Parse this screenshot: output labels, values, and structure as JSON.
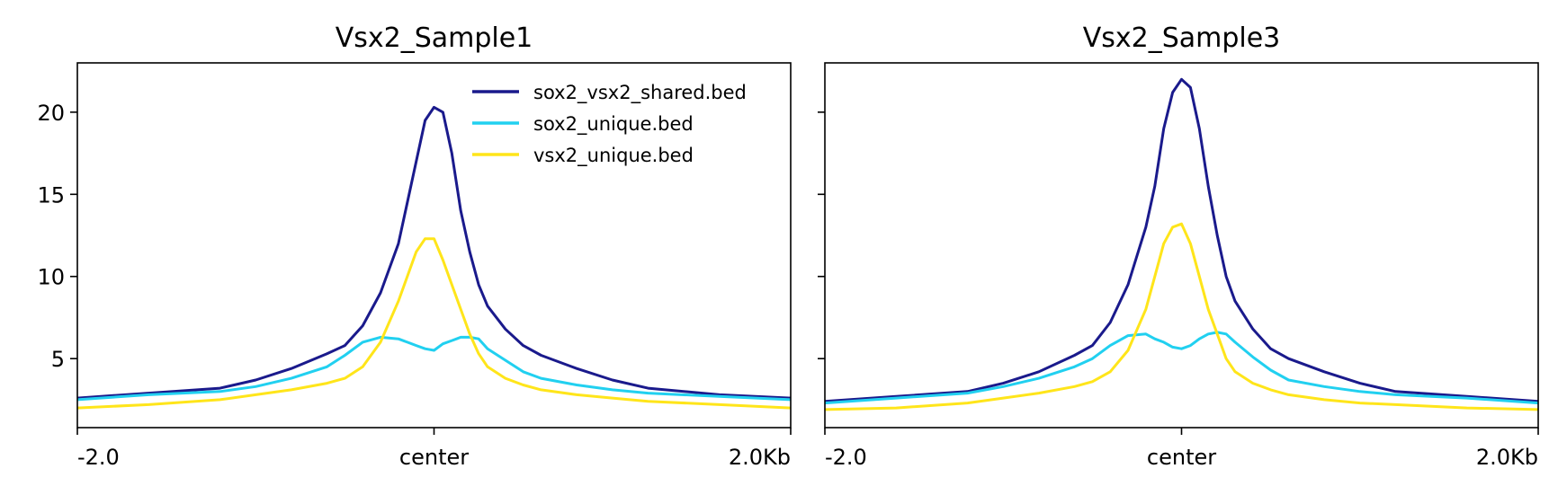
{
  "chart_data": {
    "type": "line",
    "shared_y": true,
    "ylim": [
      0.8,
      23.0
    ],
    "yticks": [
      5,
      10,
      15,
      20
    ],
    "xlim": [
      -2.0,
      2.0
    ],
    "xtick_positions": [
      -2.0,
      0.0,
      2.0
    ],
    "xtick_labels": [
      "-2.0",
      "center",
      "2.0Kb"
    ],
    "legend_position": "top-right of first panel",
    "series_colors": {
      "sox2_vsx2_shared.bed": "#1a1a8c",
      "sox2_unique.bed": "#21d0f0",
      "vsx2_unique.bed": "#ffe51a"
    },
    "legend": [
      "sox2_vsx2_shared.bed",
      "sox2_unique.bed",
      "vsx2_unique.bed"
    ],
    "panels": [
      {
        "title": "Vsx2_Sample1",
        "x": [
          -2.0,
          -1.6,
          -1.2,
          -1.0,
          -0.8,
          -0.6,
          -0.5,
          -0.4,
          -0.3,
          -0.2,
          -0.15,
          -0.1,
          -0.05,
          0.0,
          0.05,
          0.1,
          0.15,
          0.2,
          0.25,
          0.3,
          0.4,
          0.5,
          0.6,
          0.8,
          1.0,
          1.2,
          1.6,
          2.0
        ],
        "series": [
          {
            "name": "sox2_vsx2_shared.bed",
            "values": [
              2.6,
              2.9,
              3.2,
              3.7,
              4.4,
              5.3,
              5.8,
              7.0,
              9.0,
              12.0,
              14.5,
              17.0,
              19.5,
              20.3,
              20.0,
              17.5,
              14.0,
              11.5,
              9.5,
              8.2,
              6.8,
              5.8,
              5.2,
              4.4,
              3.7,
              3.2,
              2.8,
              2.6
            ]
          },
          {
            "name": "sox2_unique.bed",
            "values": [
              2.5,
              2.8,
              3.0,
              3.3,
              3.8,
              4.5,
              5.2,
              6.0,
              6.3,
              6.2,
              6.0,
              5.8,
              5.6,
              5.5,
              5.9,
              6.1,
              6.3,
              6.3,
              6.2,
              5.6,
              4.9,
              4.2,
              3.8,
              3.4,
              3.1,
              2.9,
              2.7,
              2.5
            ]
          },
          {
            "name": "vsx2_unique.bed",
            "values": [
              2.0,
              2.2,
              2.5,
              2.8,
              3.1,
              3.5,
              3.8,
              4.5,
              6.0,
              8.5,
              10.0,
              11.5,
              12.3,
              12.3,
              11.0,
              9.5,
              8.0,
              6.5,
              5.3,
              4.5,
              3.8,
              3.4,
              3.1,
              2.8,
              2.6,
              2.4,
              2.2,
              2.0
            ]
          }
        ]
      },
      {
        "title": "Vsx2_Sample3",
        "x": [
          -2.0,
          -1.6,
          -1.2,
          -1.0,
          -0.8,
          -0.6,
          -0.5,
          -0.4,
          -0.3,
          -0.2,
          -0.15,
          -0.1,
          -0.05,
          0.0,
          0.05,
          0.1,
          0.15,
          0.2,
          0.25,
          0.3,
          0.4,
          0.5,
          0.6,
          0.8,
          1.0,
          1.2,
          1.6,
          2.0
        ],
        "series": [
          {
            "name": "sox2_vsx2_shared.bed",
            "values": [
              2.4,
              2.7,
              3.0,
              3.5,
              4.2,
              5.2,
              5.8,
              7.2,
              9.5,
              13.0,
              15.5,
              19.0,
              21.2,
              22.0,
              21.5,
              19.0,
              15.5,
              12.5,
              10.0,
              8.5,
              6.8,
              5.6,
              5.0,
              4.2,
              3.5,
              3.0,
              2.7,
              2.4
            ]
          },
          {
            "name": "sox2_unique.bed",
            "values": [
              2.3,
              2.6,
              2.9,
              3.3,
              3.8,
              4.5,
              5.0,
              5.8,
              6.4,
              6.5,
              6.2,
              6.0,
              5.7,
              5.6,
              5.8,
              6.2,
              6.5,
              6.6,
              6.5,
              6.0,
              5.1,
              4.3,
              3.7,
              3.3,
              3.0,
              2.8,
              2.6,
              2.3
            ]
          },
          {
            "name": "vsx2_unique.bed",
            "values": [
              1.9,
              2.0,
              2.3,
              2.6,
              2.9,
              3.3,
              3.6,
              4.2,
              5.5,
              8.0,
              10.0,
              12.0,
              13.0,
              13.2,
              12.0,
              10.0,
              8.0,
              6.5,
              5.0,
              4.2,
              3.5,
              3.1,
              2.8,
              2.5,
              2.3,
              2.2,
              2.0,
              1.9
            ]
          }
        ]
      }
    ]
  }
}
